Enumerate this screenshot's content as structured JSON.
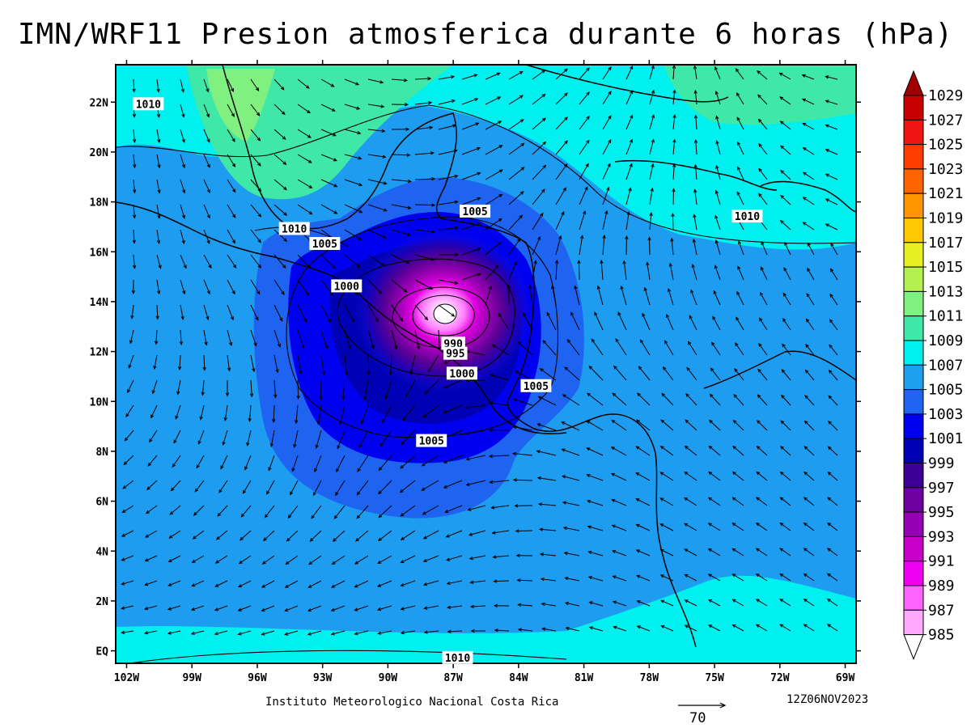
{
  "title": "IMN/WRF11 Presion atmosferica durante 6 horas (hPa)",
  "footer": {
    "credit": "Instituto Meteorologico Nacional Costa Rica",
    "timestamp": "12Z06NOV2023",
    "reference_vector": "70"
  },
  "map": {
    "lat_labels": [
      "22N",
      "20N",
      "18N",
      "16N",
      "14N",
      "12N",
      "10N",
      "8N",
      "6N",
      "4N",
      "2N",
      "EQ"
    ],
    "lat_values": [
      22,
      20,
      18,
      16,
      14,
      12,
      10,
      8,
      6,
      4,
      2,
      0
    ],
    "lon_labels": [
      "102W",
      "99W",
      "96W",
      "93W",
      "90W",
      "87W",
      "84W",
      "81W",
      "78W",
      "75W",
      "72W",
      "69W"
    ],
    "lon_values": [
      -102,
      -99,
      -96,
      -93,
      -90,
      -87,
      -84,
      -81,
      -78,
      -75,
      -72,
      -69
    ],
    "extent": {
      "lon_min": -102.5,
      "lon_max": -68.5,
      "lat_min": -0.5,
      "lat_max": 23.5
    },
    "low_center": {
      "lon": -86.5,
      "lat": 13.2
    },
    "isobar_labels": [
      {
        "text": "1010",
        "lon": -101.0,
        "lat": 21.9
      },
      {
        "text": "1010",
        "lon": -94.3,
        "lat": 16.9
      },
      {
        "text": "1005",
        "lon": -92.9,
        "lat": 16.3
      },
      {
        "text": "1000",
        "lon": -91.9,
        "lat": 14.6
      },
      {
        "text": "1005",
        "lon": -86.0,
        "lat": 17.6
      },
      {
        "text": "1010",
        "lon": -73.5,
        "lat": 17.4
      },
      {
        "text": "990",
        "lon": -87.0,
        "lat": 12.3
      },
      {
        "text": "995",
        "lon": -86.9,
        "lat": 11.9
      },
      {
        "text": "1000",
        "lon": -86.6,
        "lat": 11.1
      },
      {
        "text": "1005",
        "lon": -83.2,
        "lat": 10.6
      },
      {
        "text": "1005",
        "lon": -88.0,
        "lat": 8.4
      },
      {
        "text": "1010",
        "lon": -86.8,
        "lat": -0.3
      }
    ]
  },
  "colorbar": {
    "labels": [
      "1029",
      "1027",
      "1025",
      "1023",
      "1021",
      "1019",
      "1017",
      "1015",
      "1013",
      "1011",
      "1009",
      "1007",
      "1005",
      "1003",
      "1001",
      "999",
      "997",
      "995",
      "993",
      "991",
      "989",
      "987",
      "985"
    ],
    "colors": [
      "#a00000",
      "#c80000",
      "#f01414",
      "#ff3c00",
      "#ff6400",
      "#ff9600",
      "#ffc800",
      "#e6f020",
      "#b4f050",
      "#80f080",
      "#40e8a8",
      "#00f0f0",
      "#1ea0f0",
      "#1e64f0",
      "#0000f0",
      "#0000b4",
      "#3c0096",
      "#6e00a0",
      "#9600b4",
      "#c800c8",
      "#f000f0",
      "#ff64ff",
      "#ffaaff",
      "#ffffff"
    ]
  }
}
